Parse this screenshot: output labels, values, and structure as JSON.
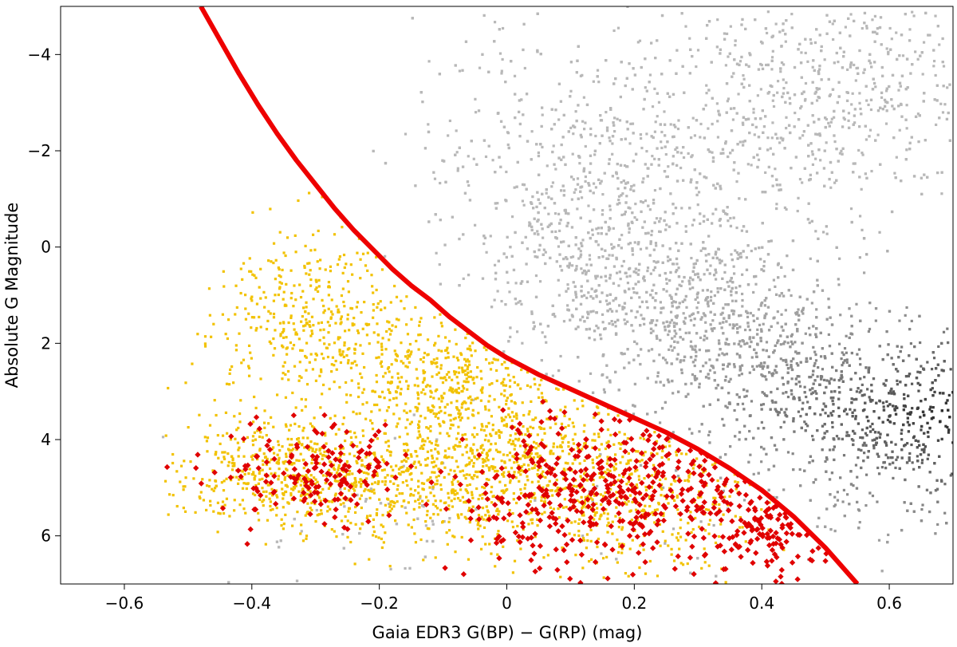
{
  "chart_data": {
    "type": "scatter",
    "title": "",
    "xlabel": "Gaia EDR3 G(BP) − G(RP) (mag)",
    "ylabel": "Absolute G Magnitude",
    "xlim": [
      -0.7,
      0.7
    ],
    "ylim": [
      7,
      -5
    ],
    "y_inverted": true,
    "grid": false,
    "legend": "none",
    "x_ticks": [
      -0.6,
      -0.4,
      -0.2,
      0,
      0.2,
      0.4,
      0.6
    ],
    "x_tick_labels": [
      "−0.6",
      "−0.4",
      "−0.2",
      "0",
      "0.2",
      "0.4",
      "0.6"
    ],
    "y_ticks": [
      -4,
      -2,
      0,
      2,
      4,
      6
    ],
    "y_tick_labels": [
      "−4",
      "−2",
      "0",
      "2",
      "4",
      "6"
    ],
    "boundary_curve": {
      "color": "#ee0000",
      "x": [
        -0.48,
        -0.45,
        -0.42,
        -0.39,
        -0.36,
        -0.33,
        -0.3,
        -0.27,
        -0.24,
        -0.21,
        -0.18,
        -0.15,
        -0.12,
        -0.09,
        -0.06,
        -0.03,
        0.0,
        0.05,
        0.1,
        0.15,
        0.2,
        0.25,
        0.3,
        0.35,
        0.4,
        0.45,
        0.5,
        0.55
      ],
      "y": [
        -5.0,
        -4.3,
        -3.6,
        -2.95,
        -2.35,
        -1.8,
        -1.3,
        -0.8,
        -0.35,
        0.05,
        0.45,
        0.8,
        1.1,
        1.45,
        1.75,
        2.05,
        2.3,
        2.65,
        2.95,
        3.25,
        3.55,
        3.85,
        4.2,
        4.6,
        5.05,
        5.6,
        6.25,
        7.0
      ]
    },
    "series": [
      {
        "color": "#b8b8b8",
        "description_points": "dense background population, heaviest near x 0.5-0.7, y 2-5",
        "centers": [
          [
            0.62,
            3.6
          ],
          [
            0.45,
            2.6
          ],
          [
            0.3,
            1.6
          ],
          [
            0.18,
            0.6
          ],
          [
            0.1,
            -1.5
          ],
          [
            0.35,
            -2.5
          ],
          [
            0.55,
            -3.5
          ],
          [
            0.2,
            5.5
          ]
        ],
        "spread": [
          [
            0.08,
            0.9
          ],
          [
            0.1,
            0.9
          ],
          [
            0.1,
            0.9
          ],
          [
            0.1,
            1.0
          ],
          [
            0.12,
            1.4
          ],
          [
            0.15,
            1.5
          ],
          [
            0.12,
            1.2
          ],
          [
            0.25,
            1.0
          ]
        ]
      },
      {
        "color": "#f2c200",
        "centers": [
          [
            -0.35,
            4.6
          ],
          [
            -0.15,
            5.0
          ],
          [
            0.0,
            4.3
          ],
          [
            -0.1,
            2.8
          ],
          [
            0.2,
            5.2
          ],
          [
            -0.3,
            1.5
          ]
        ],
        "spread": [
          [
            0.08,
            0.6
          ],
          [
            0.1,
            0.6
          ],
          [
            0.08,
            0.8
          ],
          [
            0.08,
            0.7
          ],
          [
            0.1,
            0.8
          ],
          [
            0.08,
            0.9
          ]
        ]
      },
      {
        "color": "#e00000",
        "centers": [
          [
            0.3,
            5.0
          ],
          [
            0.15,
            4.8
          ],
          [
            0.42,
            5.8
          ],
          [
            0.05,
            5.2
          ],
          [
            -0.3,
            4.6
          ]
        ],
        "spread": [
          [
            0.08,
            0.8
          ],
          [
            0.08,
            0.8
          ],
          [
            0.05,
            0.6
          ],
          [
            0.06,
            0.8
          ],
          [
            0.08,
            0.5
          ]
        ]
      }
    ]
  }
}
